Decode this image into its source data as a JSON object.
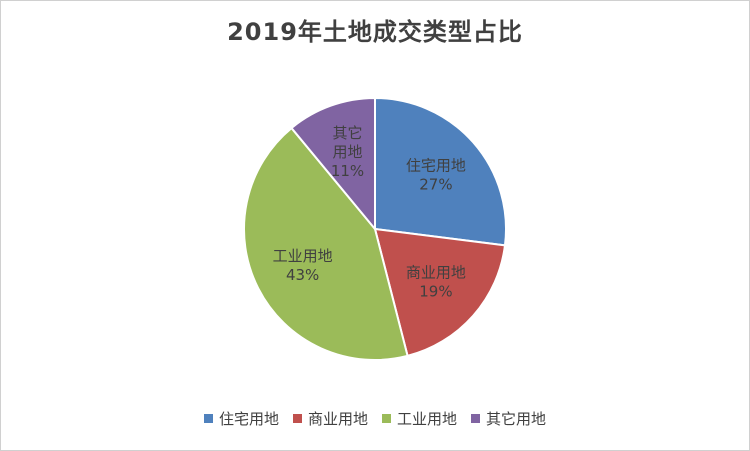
{
  "chart_data": {
    "type": "pie",
    "title": "2019年土地成交类型占比",
    "categories": [
      "住宅用地",
      "商业用地",
      "工业用地",
      "其它用地"
    ],
    "values": [
      27,
      19,
      43,
      11
    ],
    "value_labels": [
      "27%",
      "19%",
      "43%",
      "11%"
    ],
    "colors": [
      "#4f81bd",
      "#c0504d",
      "#9bbb59",
      "#8064a2"
    ],
    "legend_position": "bottom",
    "start_angle_deg": 0,
    "direction": "clockwise"
  },
  "legend": {
    "items": [
      {
        "label": "住宅用地",
        "color": "#4f81bd"
      },
      {
        "label": "商业用地",
        "color": "#c0504d"
      },
      {
        "label": "工业用地",
        "color": "#9bbb59"
      },
      {
        "label": "其它用地",
        "color": "#8064a2"
      }
    ]
  }
}
